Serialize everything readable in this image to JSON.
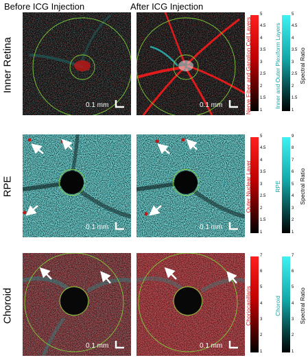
{
  "columns": [
    "Before ICG Injection",
    "After ICG Injection"
  ],
  "rows": [
    {
      "label": "Inner Retina",
      "scale_text": [
        "0.1 mm",
        "0.1 mm"
      ],
      "red_label": "Nerve Fiber and Ganglion Cell Layers",
      "cyan_label": "Inner and Outer Plexiform Layers",
      "ratio_label": "Spectral Ratio",
      "red_ticks": [
        "5",
        "4.5",
        "4",
        "3.5",
        "3",
        "2.5",
        "2",
        "1.5",
        "1"
      ],
      "cyan_ticks": [
        "5",
        "4.5",
        "4",
        "3.5",
        "3",
        "2.5",
        "2",
        "1.5",
        "1"
      ]
    },
    {
      "label": "RPE",
      "scale_text": [
        "0.1 mm",
        "0.1 mm"
      ],
      "red_label": "Outer Nuclear Layer",
      "cyan_label": "RPE",
      "ratio_label": "Spectral Ratio",
      "red_ticks": [
        "5",
        "4.5",
        "4",
        "3.5",
        "3",
        "2.5",
        "2",
        "1.5",
        "1"
      ],
      "cyan_ticks": [
        "9",
        "8",
        "7",
        "6",
        "5",
        "4",
        "3",
        "2",
        "1"
      ]
    },
    {
      "label": "Choroid",
      "scale_text": [
        "0.1 mm",
        "0.1 mm"
      ],
      "red_label": "Choriocapillaris",
      "cyan_label": "Choroid",
      "ratio_label": "Spectral Ratio",
      "red_ticks": [
        "7",
        "6",
        "5",
        "4",
        "3",
        "2",
        "1"
      ],
      "cyan_ticks": [
        "7",
        "6",
        "5",
        "4",
        "3",
        "2",
        "1"
      ]
    }
  ],
  "colors": {
    "red": "#e01b1b",
    "cyan": "#2fd6d6",
    "circle": "#7ecf3a",
    "arrow": "#ffffff"
  }
}
